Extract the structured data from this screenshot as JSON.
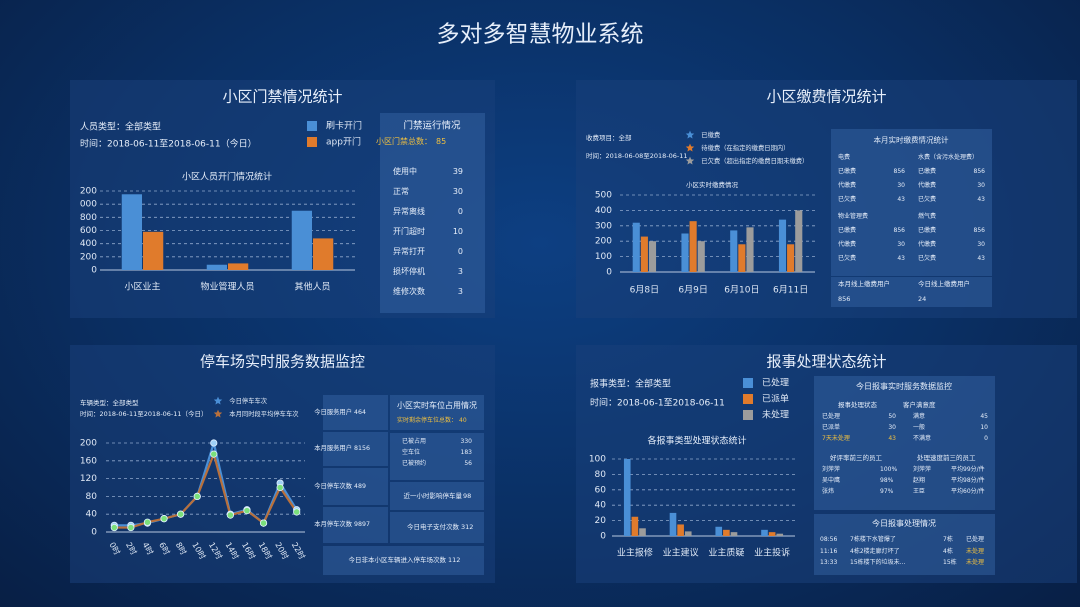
{
  "title": "多对多智慧物业系统",
  "panels": [
    {
      "title": "小区门禁情况统计",
      "filters": [
        "人员类型：全部类型",
        "时间：2018-06-11至2018-06-11（今日）"
      ]
    },
    {
      "title": "小区缴费情况统计",
      "filters": [
        "收费项目：全部",
        "时间：2018-06-08至2018-06-11"
      ]
    },
    {
      "title": "停车场实时服务数据监控",
      "filters": [
        "车辆类型：全部类型",
        "时间：2018-06-11至2018-06-11（今日）"
      ]
    },
    {
      "title": "报事处理状态统计",
      "filters": [
        "报事类型：全部类型",
        "时间：2018-06-1至2018-06-11"
      ]
    }
  ],
  "access_status": {
    "title": "门禁运行情况",
    "total_label": "小区门禁总数：",
    "total": 85,
    "rows": [
      [
        "使用中",
        39
      ],
      [
        "正常",
        30
      ],
      [
        "异常离线",
        0
      ],
      [
        "开门超时",
        10
      ],
      [
        "异常打开",
        0
      ],
      [
        "损坏停机",
        3
      ],
      [
        "维修次数",
        3
      ]
    ]
  },
  "payment_stats": {
    "title": "本月实时缴费情况统计",
    "groups": [
      {
        "name": "电费",
        "rows": [
          [
            "已缴费",
            856
          ],
          [
            "代缴费",
            30
          ],
          [
            "已欠费",
            43
          ]
        ]
      },
      {
        "name": "水费（含污水处理费）",
        "rows": [
          [
            "已缴费",
            856
          ],
          [
            "代缴费",
            30
          ],
          [
            "已欠费",
            43
          ]
        ]
      },
      {
        "name": "物业管理费",
        "rows": [
          [
            "已缴费",
            856
          ],
          [
            "代缴费",
            30
          ],
          [
            "已欠费",
            43
          ]
        ]
      },
      {
        "name": "燃气费",
        "rows": [
          [
            "已缴费",
            856
          ],
          [
            "代缴费",
            30
          ],
          [
            "已欠费",
            43
          ]
        ]
      }
    ],
    "footer": [
      [
        "本月线上缴费用户",
        856
      ],
      [
        "今日线上缴费用户",
        24
      ]
    ]
  },
  "parking_stats": {
    "cards": [
      [
        "今日服务用户",
        464
      ],
      [
        "本月服务用户",
        8156
      ],
      [
        "今日停车次数",
        489
      ],
      [
        "本月停车次数",
        9897
      ]
    ],
    "occupancy": {
      "title": "小区实时车位占用情况",
      "remaining_label": "实时剩余停车位总数：",
      "remaining": 40,
      "rows": [
        [
          "已被占用",
          330
        ],
        [
          "空车位",
          183
        ],
        [
          "已被预约",
          56
        ]
      ]
    },
    "hour_label": "近一小时影响停车量",
    "hour": 98,
    "pay_label": "今日电子支付次数",
    "pay": 312,
    "outside_label": "今日非本小区车辆进入停车场次数",
    "outside": 112
  },
  "report_stats": {
    "title": "今日报事实时服务数据监控",
    "status": {
      "title": "报事处理状态",
      "rows": [
        [
          "已处理",
          50
        ],
        [
          "已派单",
          30
        ],
        [
          "7天未处理",
          43
        ]
      ]
    },
    "satisfaction": {
      "title": "客户满意度",
      "rows": [
        [
          "满意",
          45
        ],
        [
          "一般",
          10
        ],
        [
          "不满意",
          0
        ]
      ]
    },
    "rating": {
      "title": "好评率前三的员工",
      "rows": [
        [
          "刘萍萍",
          "100%"
        ],
        [
          "吴中鹰",
          "98%"
        ],
        [
          "张炜",
          "97%"
        ]
      ]
    },
    "speed": {
      "title": "处理速度前三的员工",
      "rows": [
        [
          "刘萍萍",
          "平均99分/件"
        ],
        [
          "赵翔",
          "平均98分/件"
        ],
        [
          "王臣",
          "平均60分/件"
        ]
      ]
    }
  },
  "report_today": {
    "title": "今日报事处理情况",
    "rows": [
      [
        "08:56",
        "7栋楼下水管爆了",
        "7栋",
        "已处理"
      ],
      [
        "11:16",
        "4栋2楼走廊灯坏了",
        "4栋",
        "未处理"
      ],
      [
        "13:33",
        "15栋楼下的垃圾未...",
        "15栋",
        "未处理"
      ]
    ]
  },
  "chart_data": [
    {
      "type": "bar",
      "title": "小区人员开门情况统计",
      "categories": [
        "小区业主",
        "物业管理人员",
        "其他人员"
      ],
      "series": [
        {
          "name": "刷卡开门",
          "color": "#4a8fd6",
          "values": [
            1150,
            80,
            900
          ]
        },
        {
          "name": "app开门",
          "color": "#e07b2c",
          "values": [
            580,
            100,
            480
          ]
        }
      ],
      "ylim": [
        0,
        1200
      ],
      "yticks": [
        0,
        200,
        400,
        600,
        800,
        1000,
        1200
      ],
      "grid": true,
      "legend_marker": "square"
    },
    {
      "type": "bar",
      "title": "小区实时缴费情况",
      "categories": [
        "6月8日",
        "6月9日",
        "6月10日",
        "6月11日"
      ],
      "series": [
        {
          "name": "已缴费",
          "color": "#4a8fd6",
          "values": [
            320,
            250,
            270,
            340
          ]
        },
        {
          "name": "待缴费（在指定的缴费日期内）",
          "color": "#e07b2c",
          "values": [
            230,
            330,
            180,
            180
          ]
        },
        {
          "name": "已欠费（超出指定的缴费日期未缴费）",
          "color": "#9c9c9c",
          "values": [
            200,
            200,
            290,
            400
          ]
        }
      ],
      "ylim": [
        0,
        500
      ],
      "yticks": [
        0,
        100,
        200,
        300,
        400,
        500
      ],
      "grid": true,
      "legend_marker": "star"
    },
    {
      "type": "line",
      "categories": [
        "0时",
        "2时",
        "4时",
        "6时",
        "8时",
        "10时",
        "12时",
        "14时",
        "16时",
        "18时",
        "20时",
        "22时"
      ],
      "series": [
        {
          "name": "今日停车车次",
          "color": "#4a8fd6",
          "marker": "#9fd0f5",
          "values": [
            15,
            15,
            20,
            30,
            40,
            80,
            200,
            40,
            50,
            20,
            110,
            50
          ]
        },
        {
          "name": "本月同时段平均停车车次",
          "color": "#b8703c",
          "marker": "#7be07b",
          "values": [
            10,
            10,
            22,
            30,
            40,
            80,
            175,
            38,
            48,
            20,
            100,
            45
          ]
        }
      ],
      "ylim": [
        0,
        200
      ],
      "yticks": [
        0,
        40,
        80,
        120,
        160,
        200
      ],
      "grid": true,
      "legend_marker": "star"
    },
    {
      "type": "bar",
      "title": "各报事类型处理状态统计",
      "categories": [
        "业主报修",
        "业主建议",
        "业主质疑",
        "业主投诉"
      ],
      "series": [
        {
          "name": "已处理",
          "color": "#4a8fd6",
          "values": [
            100,
            30,
            12,
            8
          ]
        },
        {
          "name": "已派单",
          "color": "#e07b2c",
          "values": [
            25,
            15,
            8,
            5
          ]
        },
        {
          "name": "未处理",
          "color": "#9c9c9c",
          "values": [
            10,
            6,
            5,
            3
          ]
        }
      ],
      "ylim": [
        0,
        100
      ],
      "yticks": [
        0,
        20,
        40,
        60,
        80,
        100
      ],
      "grid": true,
      "legend_marker": "square"
    }
  ]
}
